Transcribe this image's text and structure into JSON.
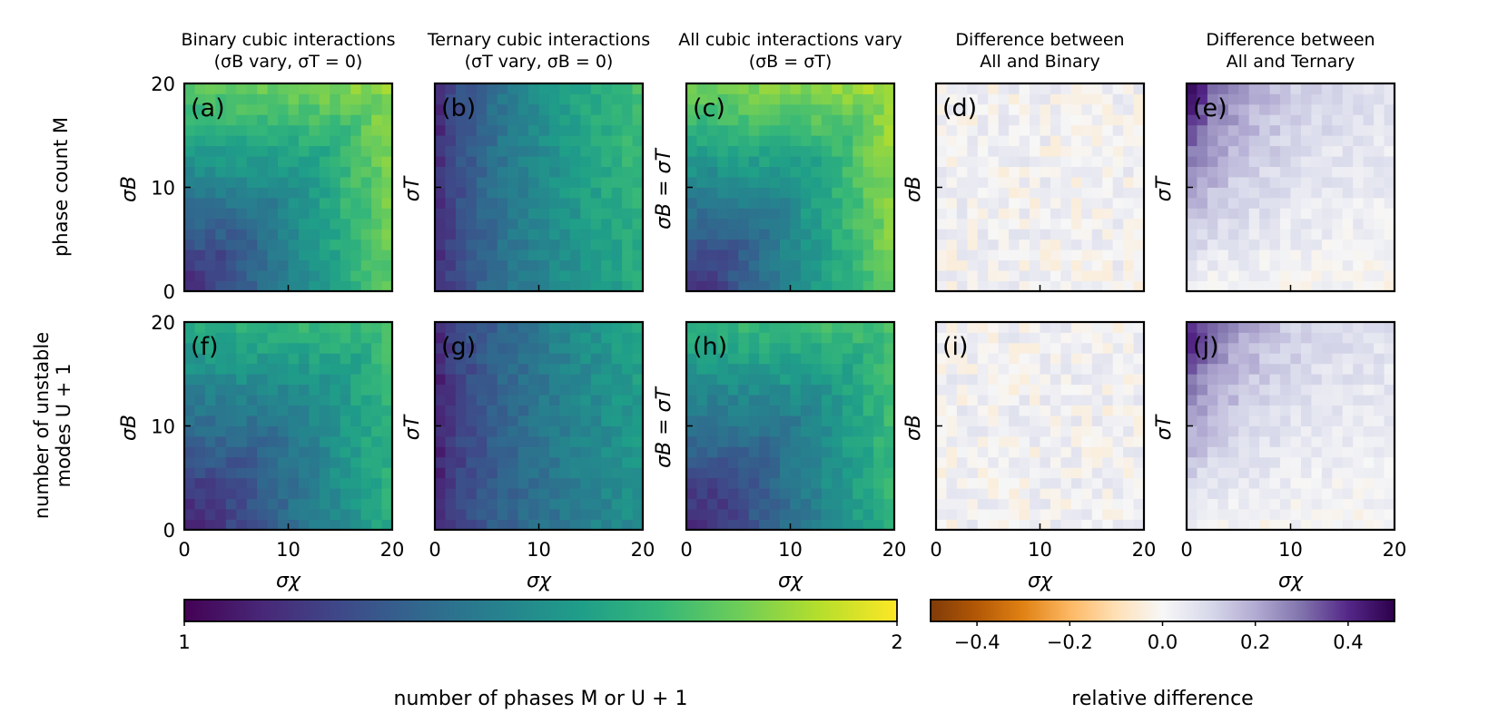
{
  "figure": {
    "row_labels": [
      {
        "line1": "phase count",
        "var": "M"
      },
      {
        "line1": "number of unstable",
        "line2": "modes",
        "var": "U + 1"
      }
    ]
  },
  "chart_data": {
    "type": "heatmap",
    "grid_cells": 20,
    "axis_range": [
      0,
      20
    ],
    "x_ticks": [
      0,
      10,
      20
    ],
    "y_ticks": [
      0,
      10,
      20
    ],
    "xlabel": "σχ",
    "columns": [
      {
        "title1": "Binary cubic interactions",
        "title2": "(σB vary, σT = 0)",
        "ylabel": "σB",
        "kind": "binary"
      },
      {
        "title1": "Ternary cubic interactions",
        "title2": "(σT vary, σB = 0)",
        "ylabel": "σT",
        "kind": "ternary"
      },
      {
        "title1": "All cubic interactions vary",
        "title2": "(σB = σT)",
        "ylabel": "σB = σT",
        "kind": "all"
      },
      {
        "title1": "Difference between",
        "title2": "All and Binary",
        "ylabel": "σB",
        "kind": "diffB"
      },
      {
        "title1": "Difference between",
        "title2": "All and Ternary",
        "ylabel": "σT",
        "kind": "diffT"
      }
    ],
    "panels": [
      {
        "label": "(a)",
        "row": 0,
        "col": 0
      },
      {
        "label": "(b)",
        "row": 0,
        "col": 1
      },
      {
        "label": "(c)",
        "row": 0,
        "col": 2
      },
      {
        "label": "(d)",
        "row": 0,
        "col": 3
      },
      {
        "label": "(e)",
        "row": 0,
        "col": 4
      },
      {
        "label": "(f)",
        "row": 1,
        "col": 0
      },
      {
        "label": "(g)",
        "row": 1,
        "col": 1
      },
      {
        "label": "(h)",
        "row": 1,
        "col": 2
      },
      {
        "label": "(i)",
        "row": 1,
        "col": 3
      },
      {
        "label": "(j)",
        "row": 1,
        "col": 4
      }
    ],
    "colorbar_phases": {
      "label": "number of phases M or U + 1",
      "range": [
        1,
        2
      ],
      "ticks": [
        "1",
        "2"
      ],
      "colormap": "viridis"
    },
    "colorbar_diff": {
      "label": "relative difference",
      "range": [
        -0.5,
        0.5
      ],
      "tick_values": [
        -0.4,
        -0.2,
        0.0,
        0.2,
        0.4
      ],
      "tick_labels": [
        "−0.4",
        "−0.2",
        "0.0",
        "0.2",
        "0.4"
      ],
      "colormap": "PuOr"
    }
  }
}
